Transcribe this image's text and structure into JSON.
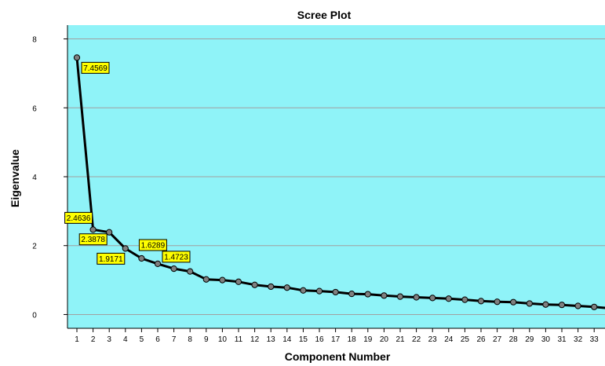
{
  "chart_data": {
    "type": "line",
    "title": "Scree Plot",
    "xlabel": "Component Number",
    "ylabel": "Eigenvalue",
    "ylim": [
      -0.4,
      8.4
    ],
    "yticks": [
      0,
      2,
      4,
      6,
      8
    ],
    "grid": "horizontal",
    "colors": {
      "plot_background": "#8FF3F8",
      "line": "#000000",
      "marker_fill": "#808080",
      "label_fill": "#FFFF00",
      "gridline": "#A0A0A0"
    },
    "x": [
      1,
      2,
      3,
      4,
      5,
      6,
      7,
      8,
      9,
      10,
      11,
      12,
      13,
      14,
      15,
      16,
      17,
      18,
      19,
      20,
      21,
      22,
      23,
      24,
      25,
      26,
      27,
      28,
      29,
      30,
      31,
      32,
      33,
      34
    ],
    "values": [
      7.4569,
      2.4636,
      2.3878,
      1.9171,
      1.6289,
      1.4723,
      1.33,
      1.25,
      1.02,
      1.0,
      0.95,
      0.86,
      0.81,
      0.78,
      0.7,
      0.68,
      0.65,
      0.6,
      0.59,
      0.55,
      0.52,
      0.5,
      0.48,
      0.46,
      0.43,
      0.39,
      0.37,
      0.36,
      0.32,
      0.29,
      0.28,
      0.25,
      0.22,
      0.18
    ],
    "data_labels": [
      {
        "x": 1,
        "text": "7.4569"
      },
      {
        "x": 2,
        "text": "2.4636"
      },
      {
        "x": 3,
        "text": "2.3878"
      },
      {
        "x": 4,
        "text": "1.9171"
      },
      {
        "x": 5,
        "text": "1.6289"
      },
      {
        "x": 6,
        "text": "1.4723"
      }
    ]
  }
}
